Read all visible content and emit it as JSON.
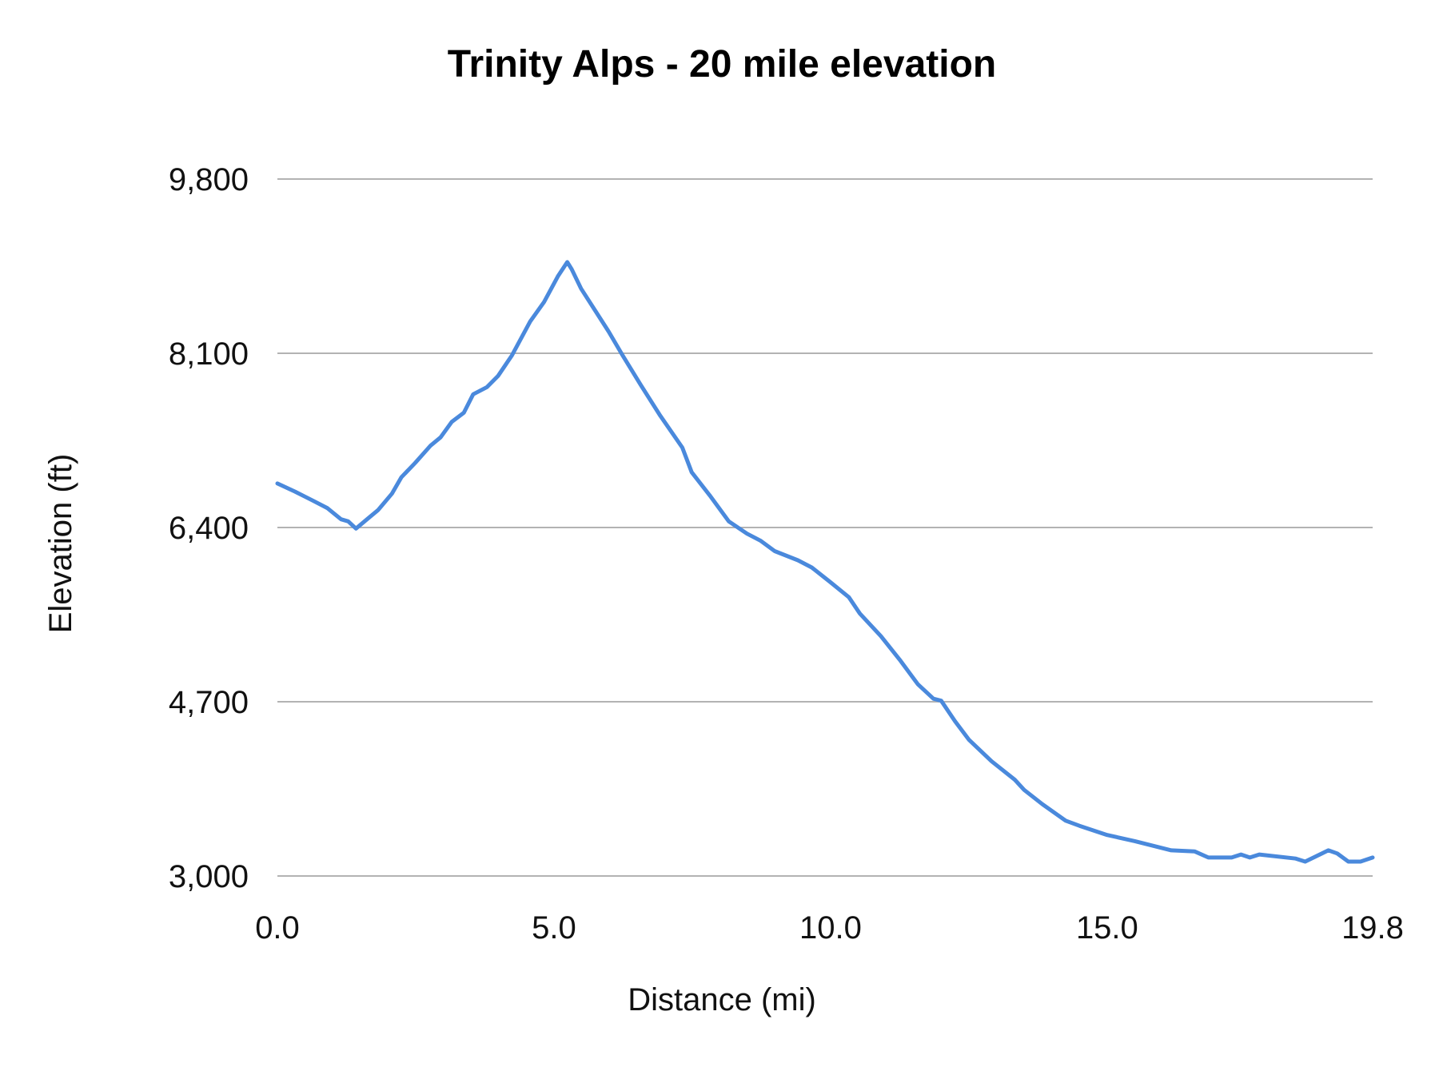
{
  "chart_data": {
    "type": "line",
    "title": "Trinity Alps - 20 mile elevation",
    "xlabel": "Distance (mi)",
    "ylabel": "Elevation (ft)",
    "xlim": [
      0,
      19.8
    ],
    "ylim": [
      3000,
      9800
    ],
    "xticks": [
      "0.0",
      "5.0",
      "10.0",
      "15.0",
      "19.8"
    ],
    "xtick_values": [
      0,
      5,
      10,
      15,
      19.8
    ],
    "yticks": [
      "3,000",
      "4,700",
      "6,400",
      "8,100",
      "9,800"
    ],
    "ytick_values": [
      3000,
      4700,
      6400,
      8100,
      9800
    ],
    "grid": "horizontal",
    "legend": "none",
    "line_color": "#4a89dc",
    "grid_color": "#b3b3b3",
    "x": [
      0,
      0.32,
      0.65,
      0.9,
      1.15,
      1.28,
      1.42,
      1.62,
      1.82,
      2.07,
      2.24,
      2.49,
      2.77,
      2.95,
      3.15,
      3.37,
      3.54,
      3.79,
      3.99,
      4.24,
      4.57,
      4.82,
      5.07,
      5.24,
      5.32,
      5.49,
      5.74,
      5.99,
      6.24,
      6.57,
      6.91,
      7.32,
      7.49,
      7.82,
      8.16,
      8.49,
      8.74,
      8.99,
      9.41,
      9.66,
      9.99,
      10.33,
      10.53,
      10.91,
      11.25,
      11.58,
      11.86,
      12.0,
      12.25,
      12.5,
      12.91,
      13.33,
      13.5,
      13.83,
      14.25,
      14.5,
      15.0,
      15.5,
      16.16,
      16.58,
      16.83,
      17.25,
      17.42,
      17.58,
      17.75,
      18.41,
      18.58,
      19.0,
      19.16,
      19.36,
      19.58,
      19.8
    ],
    "y": [
      6830,
      6750,
      6660,
      6590,
      6480,
      6460,
      6390,
      6480,
      6570,
      6730,
      6890,
      7030,
      7200,
      7280,
      7430,
      7520,
      7700,
      7770,
      7880,
      8080,
      8410,
      8600,
      8850,
      8990,
      8920,
      8730,
      8520,
      8310,
      8080,
      7790,
      7500,
      7180,
      6940,
      6710,
      6460,
      6340,
      6270,
      6170,
      6080,
      6010,
      5870,
      5720,
      5560,
      5340,
      5110,
      4870,
      4730,
      4710,
      4510,
      4330,
      4120,
      3940,
      3840,
      3700,
      3540,
      3490,
      3400,
      3340,
      3250,
      3240,
      3180,
      3180,
      3210,
      3180,
      3210,
      3170,
      3140,
      3250,
      3220,
      3140,
      3140,
      3180
    ]
  }
}
